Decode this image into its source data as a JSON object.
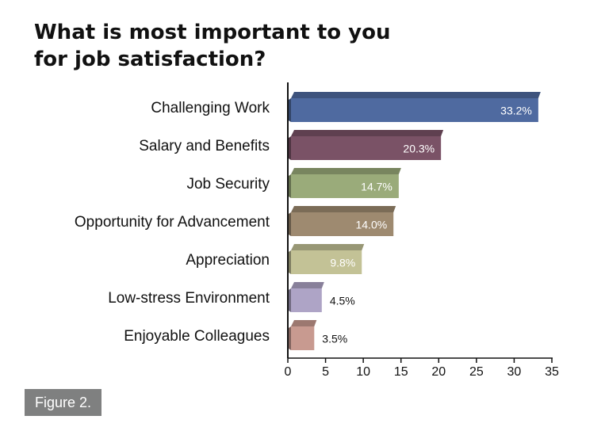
{
  "title_lines": [
    "What is most important to you",
    "for job satisfaction?"
  ],
  "figure_label": "Figure 2.",
  "chart_data": {
    "type": "bar",
    "orientation": "horizontal",
    "categories": [
      "Challenging Work",
      "Salary and Benefits",
      "Job Security",
      "Opportunity for Advancement",
      "Appreciation",
      "Low-stress Environment",
      "Enjoyable Colleagues"
    ],
    "values": [
      33.2,
      20.3,
      14.7,
      14.0,
      9.8,
      4.5,
      3.5
    ],
    "value_labels": [
      "33.2%",
      "20.3%",
      "14.7%",
      "14.0%",
      "9.8%",
      "4.5%",
      "3.5%"
    ],
    "colors": [
      "#4f6aa0",
      "#7a5266",
      "#9aab7a",
      "#9e8a70",
      "#c3c296",
      "#aea4c6",
      "#c89a90"
    ],
    "value_label_colors": [
      "#ffffff",
      "#ffffff",
      "#ffffff",
      "#ffffff",
      "#ffffff",
      "#111111",
      "#111111"
    ],
    "xlim": [
      0,
      35
    ],
    "xticks": [
      "0",
      "5",
      "10",
      "15",
      "20",
      "25",
      "30",
      "35"
    ],
    "grid": false,
    "title": "What is most important to you for job satisfaction?",
    "xlabel": "",
    "ylabel": ""
  }
}
